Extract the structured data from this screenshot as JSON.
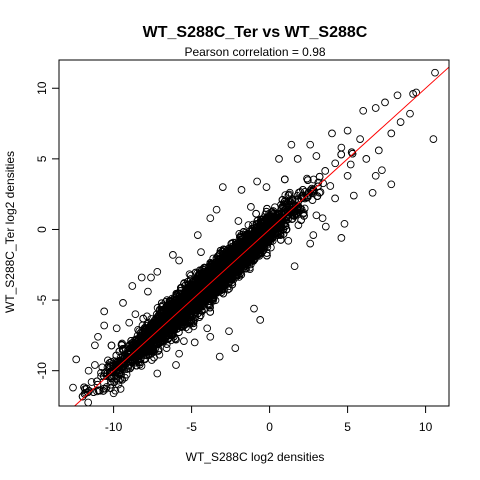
{
  "chart_data": {
    "type": "scatter",
    "title": "WT_S288C_Ter vs WT_S288C",
    "subtitle": "Pearson correlation =  0.98",
    "xlabel": "WT_S288C log2 densities",
    "ylabel": "WT_S288C_Ter log2 densities",
    "xlim": [
      -13.5,
      11.5
    ],
    "ylim": [
      -12.5,
      12.0
    ],
    "xticks": [
      -10,
      -5,
      0,
      5,
      10
    ],
    "yticks": [
      -10,
      -5,
      0,
      5,
      10
    ],
    "xtick_labels": [
      "-10",
      "-5",
      "0",
      "5",
      "10"
    ],
    "ytick_labels": [
      "-10",
      "-5",
      "0",
      "5",
      "10"
    ],
    "grid": false,
    "legend": "none",
    "point_style": "open-circle",
    "point_color": "#000000",
    "fit_line": {
      "intercept": 0,
      "slope": 1,
      "color": "#ff0000"
    },
    "points_note_outliers": [
      [
        10.6,
        11.1
      ],
      [
        10.5,
        6.4
      ],
      [
        9.4,
        9.7
      ],
      [
        9.2,
        9.6
      ],
      [
        8.2,
        9.5
      ],
      [
        7.4,
        9.0
      ],
      [
        7.2,
        4.2
      ],
      [
        7.8,
        3.2
      ],
      [
        6.8,
        3.8
      ],
      [
        6.6,
        2.6
      ],
      [
        5.2,
        4.6
      ],
      [
        5.0,
        3.8
      ],
      [
        5.4,
        2.4
      ],
      [
        4.8,
        0.4
      ],
      [
        4.6,
        -0.6
      ],
      [
        3.6,
        0.2
      ],
      [
        3.4,
        0.8
      ],
      [
        3.0,
        1.0
      ],
      [
        2.8,
        -0.4
      ],
      [
        2.6,
        -1.0
      ],
      [
        1.6,
        -2.6
      ],
      [
        1.2,
        -0.8
      ],
      [
        -0.2,
        3.0
      ],
      [
        -3.0,
        3.0
      ],
      [
        -3.4,
        1.4
      ],
      [
        -2.0,
        0.6
      ],
      [
        -3.8,
        0.8
      ],
      [
        -4.6,
        -0.4
      ],
      [
        -8.2,
        -3.4
      ],
      [
        -8.8,
        -4.0
      ],
      [
        -7.6,
        -3.4
      ],
      [
        -7.8,
        -4.4
      ],
      [
        -1.0,
        -5.6
      ],
      [
        -0.6,
        -6.4
      ],
      [
        -4.0,
        -7.0
      ],
      [
        -3.8,
        -7.6
      ],
      [
        -10.6,
        -5.8
      ],
      [
        -12.4,
        -9.2
      ],
      [
        -12.6,
        -11.2
      ],
      [
        -10.2,
        -11.0
      ],
      [
        -10.0,
        -11.6
      ],
      [
        -10.8,
        -10.4
      ],
      [
        -11.0,
        -7.6
      ],
      [
        -11.2,
        -8.2
      ],
      [
        -10.6,
        -6.8
      ],
      [
        -9.0,
        -6.6
      ],
      [
        -9.4,
        -5.2
      ],
      [
        -7.2,
        -10.2
      ],
      [
        -6.0,
        -9.6
      ],
      [
        -5.8,
        -8.8
      ],
      [
        -2.6,
        -7.2
      ],
      [
        -2.2,
        -8.4
      ],
      [
        -4.8,
        -8.0
      ],
      [
        -6.0,
        -7.8
      ],
      [
        -6.6,
        -8.4
      ],
      [
        -3.2,
        -9.0
      ],
      [
        6.0,
        8.4
      ],
      [
        6.8,
        8.6
      ],
      [
        5.0,
        7.0
      ],
      [
        4.0,
        6.8
      ],
      [
        3.0,
        5.2
      ],
      [
        2.6,
        6.0
      ],
      [
        1.8,
        5.0
      ],
      [
        -0.8,
        3.4
      ],
      [
        -1.8,
        2.8
      ],
      [
        -1.2,
        1.6
      ],
      [
        0.6,
        5.0
      ],
      [
        1.4,
        6.0
      ],
      [
        -4.4,
        -1.6
      ],
      [
        -5.8,
        -2.2
      ],
      [
        -7.2,
        -3.0
      ],
      [
        -6.2,
        -1.8
      ],
      [
        -9.0,
        -8.2
      ],
      [
        -8.0,
        -9.2
      ],
      [
        -9.6,
        -9.8
      ],
      [
        -11.2,
        -9.6
      ],
      [
        -11.6,
        -10.0
      ],
      [
        -10.4,
        -10.2
      ],
      [
        -9.8,
        -7.0
      ],
      [
        -8.6,
        -6.0
      ],
      [
        7.8,
        6.8
      ],
      [
        8.4,
        7.6
      ],
      [
        9.0,
        8.2
      ],
      [
        6.2,
        5.0
      ],
      [
        7.0,
        5.6
      ],
      [
        5.8,
        6.4
      ],
      [
        4.6,
        5.8
      ],
      [
        4.2,
        2.2
      ],
      [
        3.2,
        2.6
      ],
      [
        2.4,
        3.6
      ],
      [
        1.0,
        1.6
      ],
      [
        0.2,
        -0.8
      ],
      [
        -1.4,
        -1.0
      ],
      [
        -2.4,
        -2.8
      ]
    ],
    "point_cloud": {
      "x_min": -12.5,
      "x_max": 10.5,
      "noise_sd": 0.6,
      "count": 6000
    }
  }
}
